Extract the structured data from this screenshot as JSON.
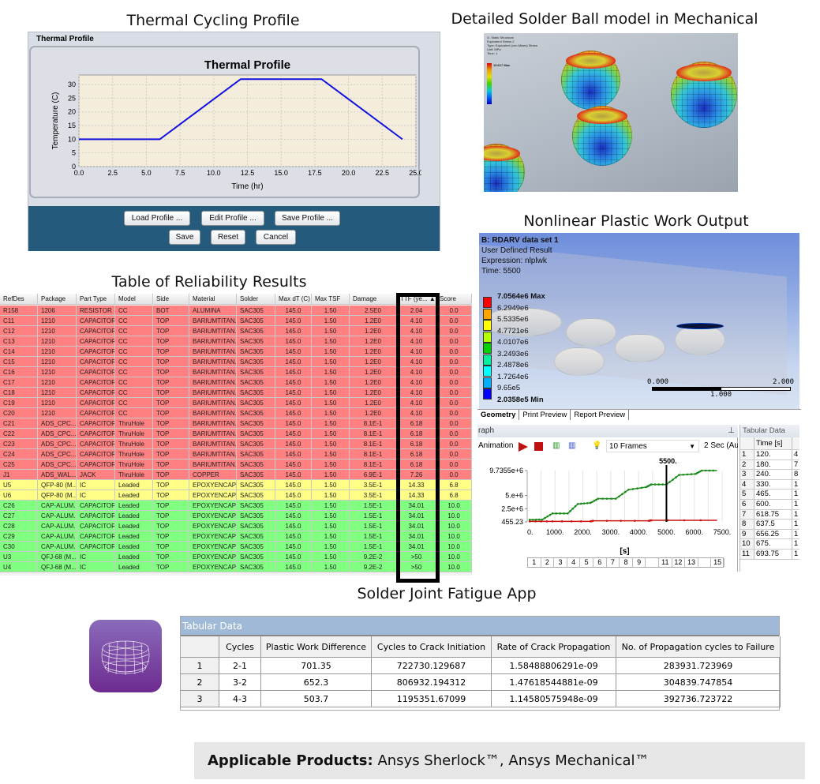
{
  "titles": {
    "thermal": "Thermal Cycling Profile",
    "solder_model": "Detailed Solder Ball model in Mechanical",
    "nonlinear": "Nonlinear Plastic Work Output",
    "reliability": "Table of Reliability Results",
    "app": "Solder Joint Fatigue App"
  },
  "thermal_panel": {
    "header": "Thermal Profile",
    "buttons": {
      "load": "Load Profile ...",
      "edit": "Edit Profile ...",
      "save_profile": "Save Profile ...",
      "save": "Save",
      "reset": "Reset",
      "cancel": "Cancel"
    },
    "colors": {
      "plot_bg": "#f5eddb",
      "line": "#1010e0",
      "footer": "#245a7c"
    }
  },
  "chart_data": [
    {
      "type": "line",
      "title": "Thermal Profile",
      "xlabel": "Time (hr)",
      "ylabel": "Temperature (C)",
      "xlim": [
        0,
        25
      ],
      "ylim": [
        0,
        33.5
      ],
      "xticks": [
        "0.0",
        "2.5",
        "5.0",
        "7.5",
        "10.0",
        "12.5",
        "15.0",
        "17.5",
        "20.0",
        "22.5",
        "25.0"
      ],
      "yticks": [
        "0",
        "5",
        "10",
        "15",
        "20",
        "25",
        "30"
      ],
      "grid": true,
      "series": [
        {
          "x": [
            0,
            6,
            12,
            18,
            24
          ],
          "y": [
            10,
            10,
            32,
            32,
            10
          ],
          "color": "#1010e0"
        }
      ]
    },
    {
      "type": "line",
      "xlabel": "[s]",
      "xlim": [
        0,
        7700
      ],
      "ylim": [
        455.23,
        9735500
      ],
      "xticks": [
        "0.",
        "1000.",
        "2000.",
        "3000.",
        "4000.",
        "5000.",
        "6000.",
        "7500."
      ],
      "yticks": [
        {
          "value": 9735500,
          "label": "9.7355e+6"
        },
        {
          "value": 5000000,
          "label": "5.e+6"
        },
        {
          "value": 2500000,
          "label": "2.5e+6"
        },
        {
          "value": 455.23,
          "label": "455.23"
        }
      ],
      "cursor": {
        "x": 5500,
        "label": "5500."
      },
      "grid": true,
      "series": [
        {
          "color": "#1a8a1a",
          "x": [
            100,
            600,
            1000,
            1600,
            2000,
            2500,
            2800,
            3500,
            4000,
            4700,
            4900,
            5500,
            6000,
            6650,
            6900,
            7500
          ],
          "y": [
            400000,
            450000,
            1600000,
            1600000,
            3400000,
            3600000,
            4400000,
            4400000,
            6100000,
            6600000,
            7100000,
            7100000,
            8900000,
            9100000,
            9735500,
            9735500
          ]
        },
        {
          "color": "#c81414",
          "x": [
            100,
            1000,
            2500,
            2600,
            4800,
            4900,
            7500
          ],
          "y": [
            100000,
            100000,
            100000,
            200000,
            200000,
            300000,
            300000
          ]
        }
      ]
    }
  ],
  "solder_model_image": {
    "lines": [
      "G: Static Structural",
      "Equivalent Stress 2",
      "Type: Equivalent (von-Mises) Stress",
      "Unit: MPa",
      "Time: 1"
    ],
    "max_label": "19.617 Max"
  },
  "nonlinear": {
    "info": {
      "title": "B: RDARV data set 1",
      "line1": "User Defined Result",
      "line2": "Expression: nlplwk",
      "line3": "Time: 5500"
    },
    "legend": [
      {
        "label": "7.0564e6 Max",
        "color": "#ff0000"
      },
      {
        "label": "6.2949e6",
        "color": "#ffa500"
      },
      {
        "label": "5.5335e6",
        "color": "#ffff00"
      },
      {
        "label": "4.7721e6",
        "color": "#b4ff00"
      },
      {
        "label": "4.0107e6",
        "color": "#00d000"
      },
      {
        "label": "3.2493e6",
        "color": "#00f0a0"
      },
      {
        "label": "2.4878e6",
        "color": "#00ffff"
      },
      {
        "label": "1.7264e6",
        "color": "#00b0ff"
      },
      {
        "label": "9.65e5",
        "color": "#0000ff"
      },
      {
        "label": "2.0358e5 Min",
        "color": ""
      }
    ],
    "scale": {
      "left": "0.000",
      "mid": "1.000",
      "right": "2.000"
    },
    "tabs": [
      "Geometry",
      "Print Preview",
      "Report Preview"
    ]
  },
  "graph": {
    "header": "raph",
    "animation_label": "Animation",
    "frames": "10 Frames",
    "duration": "2 Sec (Auto",
    "frame_buttons": [
      "1",
      "2",
      "3",
      "4",
      "5",
      "6",
      "7",
      "8",
      "9",
      "",
      "11",
      "12",
      "13",
      "",
      "15"
    ]
  },
  "tabular_side": {
    "header": "Tabular Data",
    "col_time": "Time [s]",
    "rows": [
      [
        "1",
        "120.",
        "4"
      ],
      [
        "2",
        "180.",
        "7"
      ],
      [
        "3",
        "240.",
        "8"
      ],
      [
        "4",
        "330.",
        "1"
      ],
      [
        "5",
        "465.",
        "1"
      ],
      [
        "6",
        "600.",
        "1"
      ],
      [
        "7",
        "618.75",
        "1"
      ],
      [
        "8",
        "637.5",
        "1"
      ],
      [
        "9",
        "656.25",
        "1"
      ],
      [
        "10",
        "675.",
        "1"
      ],
      [
        "11",
        "693.75",
        "1"
      ]
    ]
  },
  "reliability": {
    "columns": [
      "RefDes",
      "Package",
      "Part Type",
      "Model",
      "Side",
      "Material",
      "Solder",
      "Max dT (C)",
      "Max TSF",
      "Damage",
      "TTF (ye... ▲",
      "Score"
    ],
    "row_colors": {
      "red": "#ff8080",
      "yellow": "#ffff88",
      "green": "#80ff80"
    },
    "rows": [
      {
        "status": "red",
        "cells": [
          "R158",
          "1206",
          "RESISTOR",
          "CC",
          "BOT",
          "ALUMINA",
          "SAC305",
          "145.0",
          "1.50",
          "2.5E0",
          "2.04",
          "0.0"
        ]
      },
      {
        "status": "red",
        "cells": [
          "C11",
          "1210",
          "CAPACITOR",
          "CC",
          "TOP",
          "BARIUMTITAN...",
          "SAC305",
          "145.0",
          "1.50",
          "1.2E0",
          "4.10",
          "0.0"
        ]
      },
      {
        "status": "red",
        "cells": [
          "C12",
          "1210",
          "CAPACITOR",
          "CC",
          "TOP",
          "BARIUMTITAN...",
          "SAC305",
          "145.0",
          "1.50",
          "1.2E0",
          "4.10",
          "0.0"
        ]
      },
      {
        "status": "red",
        "cells": [
          "C13",
          "1210",
          "CAPACITOR",
          "CC",
          "TOP",
          "BARIUMTITAN...",
          "SAC305",
          "145.0",
          "1.50",
          "1.2E0",
          "4.10",
          "0.0"
        ]
      },
      {
        "status": "red",
        "cells": [
          "C14",
          "1210",
          "CAPACITOR",
          "CC",
          "TOP",
          "BARIUMTITAN...",
          "SAC305",
          "145.0",
          "1.50",
          "1.2E0",
          "4.10",
          "0.0"
        ]
      },
      {
        "status": "red",
        "cells": [
          "C15",
          "1210",
          "CAPACITOR",
          "CC",
          "TOP",
          "BARIUMTITAN...",
          "SAC305",
          "145.0",
          "1.50",
          "1.2E0",
          "4.10",
          "0.0"
        ]
      },
      {
        "status": "red",
        "cells": [
          "C16",
          "1210",
          "CAPACITOR",
          "CC",
          "TOP",
          "BARIUMTITAN...",
          "SAC305",
          "145.0",
          "1.50",
          "1.2E0",
          "4.10",
          "0.0"
        ]
      },
      {
        "status": "red",
        "cells": [
          "C17",
          "1210",
          "CAPACITOR",
          "CC",
          "TOP",
          "BARIUMTITAN...",
          "SAC305",
          "145.0",
          "1.50",
          "1.2E0",
          "4.10",
          "0.0"
        ]
      },
      {
        "status": "red",
        "cells": [
          "C18",
          "1210",
          "CAPACITOR",
          "CC",
          "TOP",
          "BARIUMTITAN...",
          "SAC305",
          "145.0",
          "1.50",
          "1.2E0",
          "4.10",
          "0.0"
        ]
      },
      {
        "status": "red",
        "cells": [
          "C19",
          "1210",
          "CAPACITOR",
          "CC",
          "TOP",
          "BARIUMTITAN...",
          "SAC305",
          "145.0",
          "1.50",
          "1.2E0",
          "4.10",
          "0.0"
        ]
      },
      {
        "status": "red",
        "cells": [
          "C20",
          "1210",
          "CAPACITOR",
          "CC",
          "TOP",
          "BARIUMTITAN...",
          "SAC305",
          "145.0",
          "1.50",
          "1.2E0",
          "4.10",
          "0.0"
        ]
      },
      {
        "status": "red",
        "cells": [
          "C21",
          "ADS_CPC...",
          "CAPACITOR",
          "ThruHole",
          "TOP",
          "BARIUMTITAN...",
          "SAC305",
          "145.0",
          "1.50",
          "8.1E-1",
          "6.18",
          "0.0"
        ]
      },
      {
        "status": "red",
        "cells": [
          "C22",
          "ADS_CPC...",
          "CAPACITOR",
          "ThruHole",
          "TOP",
          "BARIUMTITAN...",
          "SAC305",
          "145.0",
          "1.50",
          "8.1E-1",
          "6.18",
          "0.0"
        ]
      },
      {
        "status": "red",
        "cells": [
          "C23",
          "ADS_CPC...",
          "CAPACITOR",
          "ThruHole",
          "TOP",
          "BARIUMTITAN...",
          "SAC305",
          "145.0",
          "1.50",
          "8.1E-1",
          "6.18",
          "0.0"
        ]
      },
      {
        "status": "red",
        "cells": [
          "C24",
          "ADS_CPC...",
          "CAPACITOR",
          "ThruHole",
          "TOP",
          "BARIUMTITAN...",
          "SAC305",
          "145.0",
          "1.50",
          "8.1E-1",
          "6.18",
          "0.0"
        ]
      },
      {
        "status": "red",
        "cells": [
          "C25",
          "ADS_CPC...",
          "CAPACITOR",
          "ThruHole",
          "TOP",
          "BARIUMTITAN...",
          "SAC305",
          "145.0",
          "1.50",
          "8.1E-1",
          "6.18",
          "0.0"
        ]
      },
      {
        "status": "red",
        "cells": [
          "J1",
          "ADS_WAL...",
          "JACK",
          "ThruHole",
          "TOP",
          "COPPER",
          "SAC305",
          "145.0",
          "1.50",
          "6.9E-1",
          "7.26",
          "0.0"
        ]
      },
      {
        "status": "yellow",
        "cells": [
          "U5",
          "QFP-80 (M...",
          "IC",
          "Leaded",
          "TOP",
          "EPOXYENCAP...",
          "SAC305",
          "145.0",
          "1.50",
          "3.5E-1",
          "14.33",
          "6.8"
        ]
      },
      {
        "status": "yellow",
        "cells": [
          "U6",
          "QFP-80 (M...",
          "IC",
          "Leaded",
          "TOP",
          "EPOXYENCAP...",
          "SAC305",
          "145.0",
          "1.50",
          "3.5E-1",
          "14.33",
          "6.8"
        ]
      },
      {
        "status": "green",
        "cells": [
          "C26",
          "CAP-ALUM...",
          "CAPACITOR",
          "Leaded",
          "TOP",
          "EPOXYENCAP...",
          "SAC305",
          "145.0",
          "1.50",
          "1.5E-1",
          "34.01",
          "10.0"
        ]
      },
      {
        "status": "green",
        "cells": [
          "C27",
          "CAP-ALUM...",
          "CAPACITOR",
          "Leaded",
          "TOP",
          "EPOXYENCAP...",
          "SAC305",
          "145.0",
          "1.50",
          "1.5E-1",
          "34.01",
          "10.0"
        ]
      },
      {
        "status": "green",
        "cells": [
          "C28",
          "CAP-ALUM...",
          "CAPACITOR",
          "Leaded",
          "TOP",
          "EPOXYENCAP...",
          "SAC305",
          "145.0",
          "1.50",
          "1.5E-1",
          "34.01",
          "10.0"
        ]
      },
      {
        "status": "green",
        "cells": [
          "C29",
          "CAP-ALUM...",
          "CAPACITOR",
          "Leaded",
          "TOP",
          "EPOXYENCAP...",
          "SAC305",
          "145.0",
          "1.50",
          "1.5E-1",
          "34.01",
          "10.0"
        ]
      },
      {
        "status": "green",
        "cells": [
          "C30",
          "CAP-ALUM...",
          "CAPACITOR",
          "Leaded",
          "TOP",
          "EPOXYENCAP...",
          "SAC305",
          "145.0",
          "1.50",
          "1.5E-1",
          "34.01",
          "10.0"
        ]
      },
      {
        "status": "green",
        "cells": [
          "U3",
          "QFJ-68 (M...",
          "IC",
          "Leaded",
          "TOP",
          "EPOXYENCAP...",
          "SAC305",
          "145.0",
          "1.50",
          "9.2E-2",
          ">50",
          "10.0"
        ]
      },
      {
        "status": "green",
        "cells": [
          "U4",
          "QFJ-68 (M...",
          "IC",
          "Leaded",
          "TOP",
          "EPOXYENCAP...",
          "SAC305",
          "145.0",
          "1.50",
          "9.2E-2",
          ">50",
          "10.0"
        ]
      }
    ]
  },
  "fatigue_table": {
    "header": "Tabular Data",
    "columns": [
      "",
      "Cycles",
      "Plastic Work Difference",
      "Cycles to Crack Initiation",
      "Rate of Crack Propagation",
      "No. of Propagation cycles to Failure"
    ],
    "rows": [
      [
        "1",
        "2-1",
        "701.35",
        "722730.129687",
        "1.58488806291e-09",
        "283931.723969"
      ],
      [
        "2",
        "3-2",
        "652.3",
        "806932.194312",
        "1.47618544881e-09",
        "304839.747854"
      ],
      [
        "3",
        "4-3",
        "503.7",
        "1195351.67099",
        "1.14580575948e-09",
        "392736.723722"
      ]
    ]
  },
  "banner": {
    "label": "Applicable Products:",
    "text": " Ansys Sherlock™, Ansys Mechanical™"
  }
}
